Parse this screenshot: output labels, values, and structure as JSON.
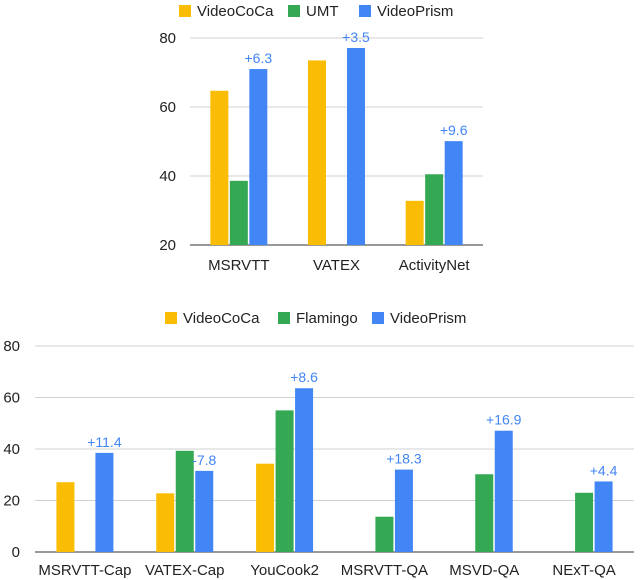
{
  "colors": {
    "VideoCoCa": "#fbbc04",
    "UMT": "#34a853",
    "Flamingo": "#34a853",
    "VideoPrism": "#4285f4",
    "annotation": "#4285f4",
    "grid": "#d0d0d0"
  },
  "chart_data": [
    {
      "type": "bar",
      "title": "",
      "xlabel": "",
      "ylabel": "",
      "legend_position": "top",
      "grid": true,
      "ylim": [
        20,
        80
      ],
      "yticks": [
        20,
        40,
        60,
        80
      ],
      "categories": [
        "MSRVTT",
        "VATEX",
        "ActivityNet"
      ],
      "series": [
        {
          "name": "VideoCoCa",
          "values": [
            64.7,
            73.5,
            32.8
          ]
        },
        {
          "name": "UMT",
          "values": [
            38.6,
            null,
            40.5
          ]
        },
        {
          "name": "VideoPrism",
          "values": [
            71.0,
            77.1,
            50.1
          ]
        }
      ],
      "annotations": [
        {
          "category": "MSRVTT",
          "series": "VideoPrism",
          "text": "+6.3"
        },
        {
          "category": "VATEX",
          "series": "VideoPrism",
          "text": "+3.5"
        },
        {
          "category": "ActivityNet",
          "series": "VideoPrism",
          "text": "+9.6"
        }
      ]
    },
    {
      "type": "bar",
      "title": "",
      "xlabel": "",
      "ylabel": "",
      "legend_position": "top",
      "grid": true,
      "ylim": [
        0,
        80
      ],
      "yticks": [
        0,
        20,
        40,
        60,
        80
      ],
      "categories": [
        "MSRVTT-Cap",
        "VATEX-Cap",
        "YouCook2",
        "MSRVTT-QA",
        "MSVD-QA",
        "NExT-QA"
      ],
      "series": [
        {
          "name": "VideoCoCa",
          "values": [
            27.1,
            22.8,
            34.3,
            null,
            null,
            null
          ]
        },
        {
          "name": "Flamingo",
          "values": [
            null,
            39.3,
            55.0,
            13.7,
            30.2,
            23.0
          ]
        },
        {
          "name": "VideoPrism",
          "values": [
            38.5,
            31.5,
            63.6,
            32.0,
            47.1,
            27.4
          ]
        }
      ],
      "annotations": [
        {
          "category": "MSRVTT-Cap",
          "series": "VideoPrism",
          "text": "+11.4"
        },
        {
          "category": "VATEX-Cap",
          "series": "VideoPrism",
          "text": "-7.8"
        },
        {
          "category": "YouCook2",
          "series": "VideoPrism",
          "text": "+8.6"
        },
        {
          "category": "MSRVTT-QA",
          "series": "VideoPrism",
          "text": "+18.3"
        },
        {
          "category": "MSVD-QA",
          "series": "VideoPrism",
          "text": "+16.9"
        },
        {
          "category": "NExT-QA",
          "series": "VideoPrism",
          "text": "+4.4"
        }
      ]
    }
  ]
}
